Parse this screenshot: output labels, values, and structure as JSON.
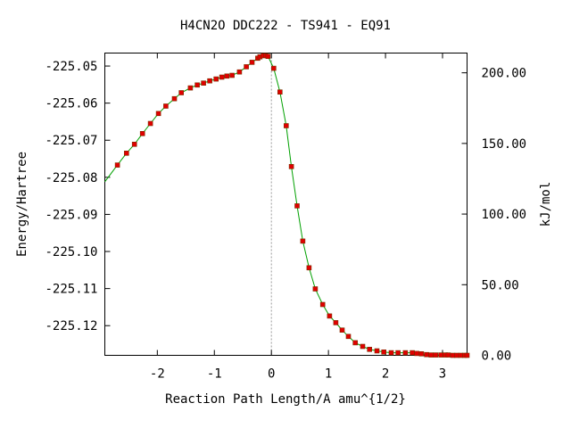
{
  "chart_data": {
    "type": "line",
    "title": "H4CN2O   DDC222 - TS941 - EQ91",
    "xlabel": "Reaction Path Length/A amu^{1/2}",
    "ylabel": "Energy/Hartree",
    "y2label": "kJ/mol",
    "xlim": [
      -2.92,
      3.43
    ],
    "ylim": [
      -225.128,
      -225.0465
    ],
    "y2lim": [
      0,
      213.98
    ],
    "x_ticks": [
      -2,
      -1,
      0,
      1,
      2,
      3
    ],
    "x_tick_labels": [
      "-2",
      "-1",
      "0",
      "1",
      "2",
      "3"
    ],
    "y_ticks": [
      -225.05,
      -225.06,
      -225.07,
      -225.08,
      -225.09,
      -225.1,
      -225.11,
      -225.12
    ],
    "y_tick_labels": [
      "-225.05",
      "-225.06",
      "-225.07",
      "-225.08",
      "-225.09",
      "-225.10",
      "-225.11",
      "-225.12"
    ],
    "y2_ticks": [
      0,
      50,
      100,
      150,
      200
    ],
    "y2_tick_labels": [
      "0.00",
      "50.00",
      "100.00",
      "150.00",
      "200.00"
    ],
    "ts_line_x": 0,
    "line_color": "#00a000",
    "marker_color": "#e00000",
    "series": [
      {
        "x": [
          -2.92,
          -2.7,
          -2.54,
          -2.4,
          -2.26,
          -2.12,
          -1.98,
          -1.85,
          -1.7,
          -1.58,
          -1.42,
          -1.3,
          -1.19,
          -1.08,
          -0.97,
          -0.87,
          -0.78,
          -0.69,
          -0.56,
          -0.44,
          -0.34,
          -0.24,
          -0.2,
          -0.14,
          -0.1,
          -0.06,
          0.04,
          0.15,
          0.26,
          0.35,
          0.45,
          0.55,
          0.66,
          0.77,
          0.9,
          1.02,
          1.13,
          1.24,
          1.35,
          1.47,
          1.6,
          1.72,
          1.85,
          1.97,
          2.1,
          2.22,
          2.35,
          2.47,
          2.55,
          2.63,
          2.72,
          2.8,
          2.88,
          2.97,
          3.05,
          3.1,
          3.18,
          3.25,
          3.32,
          3.39,
          3.43
        ],
        "y": [
          -225.0812,
          -225.0767,
          -225.0735,
          -225.0711,
          -225.0682,
          -225.0655,
          -225.0628,
          -225.0608,
          -225.0588,
          -225.0572,
          -225.0559,
          -225.0551,
          -225.0546,
          -225.054,
          -225.0535,
          -225.053,
          -225.0527,
          -225.0525,
          -225.0516,
          -225.0502,
          -225.049,
          -225.0479,
          -225.0475,
          -225.0472,
          -225.0472,
          -225.0474,
          -225.0506,
          -225.057,
          -225.0661,
          -225.0771,
          -225.0877,
          -225.0972,
          -225.1044,
          -225.1101,
          -225.1143,
          -225.1174,
          -225.1192,
          -225.1212,
          -225.1229,
          -225.1246,
          -225.1256,
          -225.1264,
          -225.1268,
          -225.1271,
          -225.1273,
          -225.1273,
          -225.1273,
          -225.1273,
          -225.1275,
          -225.1276,
          -225.1278,
          -225.1279,
          -225.1279,
          -225.1279,
          -225.1279,
          -225.1279,
          -225.128,
          -225.128,
          -225.128,
          -225.128,
          -225.128
        ]
      }
    ]
  }
}
